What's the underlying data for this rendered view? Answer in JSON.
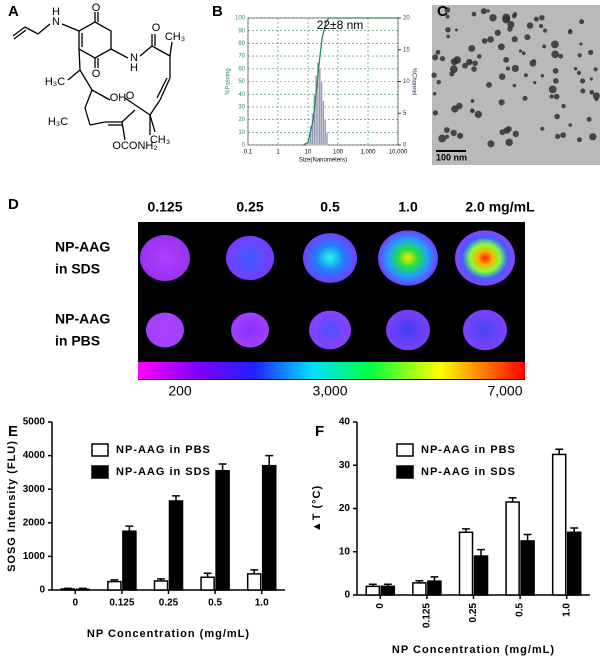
{
  "panel_labels": [
    "A",
    "B",
    "C",
    "D",
    "E",
    "F"
  ],
  "structure": {
    "atoms": [
      "O",
      "N",
      "H",
      "O",
      "N",
      "H",
      "O",
      "H₃C",
      "CH₃",
      "OH",
      "O",
      "CH₃",
      "H₃C",
      "OCONH₂"
    ]
  },
  "micrograph": {
    "scale_bar": "100 nm"
  },
  "fluorescence": {
    "concentrations": [
      "0.125",
      "0.25",
      "0.5",
      "1.0",
      "2.0 mg/mL"
    ],
    "rows": [
      [
        "NP-AAG",
        "in SDS"
      ],
      [
        "NP-AAG",
        "in PBS"
      ]
    ],
    "colorbar_ticks": [
      "200",
      "3,000",
      "7,000"
    ]
  },
  "chart_data": [
    {
      "type": "histogram",
      "title": "22±8 nm",
      "xlabel": "Size(Nanometers)",
      "ylabel": "%Passing",
      "y2label": "%Channel",
      "xlog": true,
      "xlim": [
        0.1,
        10000
      ],
      "xticks": [
        0.1,
        1,
        10,
        100,
        {
          "value": 1000,
          "label": "1,000"
        },
        {
          "value": 10000,
          "label": "10,000"
        }
      ],
      "ylim": [
        0,
        100
      ],
      "yticks": [
        0,
        10,
        20,
        30,
        40,
        50,
        60,
        70,
        80,
        90,
        100
      ],
      "y2lim": [
        0,
        20
      ],
      "y2ticks": [
        0,
        5,
        10,
        15,
        20
      ],
      "grid": true,
      "bins": [
        10,
        11.5,
        13.2,
        15.2,
        17.4,
        20,
        23,
        26.4,
        30.3,
        34.8,
        40,
        46
      ],
      "values": [
        1,
        3,
        5,
        8,
        11,
        13,
        12,
        10,
        7,
        4,
        2
      ],
      "axis": "y2",
      "color": "#9a9ab8",
      "cumulative": {
        "x": [
          7,
          10,
          15,
          20,
          25,
          30,
          40,
          50,
          10000
        ],
        "values": [
          0,
          2,
          20,
          48,
          70,
          85,
          97,
          100,
          100
        ],
        "color": "#2e8b57"
      }
    },
    {
      "type": "bar",
      "ylabel": "SOSG Intensity (FLU)",
      "xlabel": "NP Concentration (mg/mL)",
      "categories": [
        "0",
        "0.125",
        "0.25",
        "0.5",
        "1.0"
      ],
      "legend": "upper-left",
      "ylim": [
        0,
        5000
      ],
      "yticks": [
        0,
        1000,
        2000,
        3000,
        4000,
        5000
      ],
      "series": [
        {
          "name": "NP-AAG in PBS",
          "color": "#ffffff",
          "values": [
            30,
            250,
            270,
            380,
            480
          ],
          "errors": [
            20,
            50,
            60,
            120,
            120
          ]
        },
        {
          "name": "NP-AAG in SDS",
          "color": "#000000",
          "values": [
            20,
            1750,
            2650,
            3550,
            3700
          ],
          "errors": [
            30,
            150,
            150,
            200,
            300
          ]
        }
      ]
    },
    {
      "type": "bar",
      "ylabel": "▲T (°C)",
      "xlabel": "NP Concentration (mg/mL)",
      "categories": [
        "0",
        "0.125",
        "0.25",
        "0.5",
        "1.0"
      ],
      "legend": "upper-left",
      "rotate_xticks": true,
      "ylim": [
        0,
        40
      ],
      "yticks": [
        0,
        10,
        20,
        30,
        40
      ],
      "series": [
        {
          "name": "NP-AAG in PBS",
          "color": "#ffffff",
          "values": [
            2,
            2.8,
            14.5,
            21.5,
            32.5
          ],
          "errors": [
            0.5,
            0.5,
            0.8,
            1,
            1.2
          ]
        },
        {
          "name": "NP-AAG in SDS",
          "color": "#000000",
          "values": [
            2,
            3.2,
            9,
            12.5,
            14.5
          ],
          "errors": [
            0.5,
            1,
            1.5,
            1.5,
            1
          ]
        }
      ]
    }
  ]
}
